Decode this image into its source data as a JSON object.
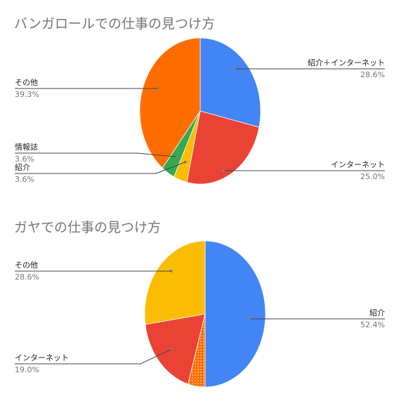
{
  "chart_data": [
    {
      "type": "pie",
      "title": "バンガロールでの仕事の見つけ方",
      "start": "top",
      "direction": "clockwise",
      "slices": [
        {
          "name": "紹介＋インターネット",
          "value": 28.6,
          "label": "28.6%",
          "color": "#4285F4",
          "side": "right"
        },
        {
          "name": "インターネット",
          "value": 25.0,
          "label": "25.0%",
          "color": "#EA4335",
          "side": "right"
        },
        {
          "name": "紹介",
          "value": 3.6,
          "label": "3.6%",
          "color": "#FBBC04",
          "side": "left"
        },
        {
          "name": "情報誌",
          "value": 3.6,
          "label": "3.6%",
          "color": "#34A853",
          "side": "left"
        },
        {
          "name": "その他",
          "value": 39.3,
          "label": "39.3%",
          "color": "#FF6D01",
          "side": "left"
        }
      ]
    },
    {
      "type": "pie",
      "title": "ガヤでの仕事の見つけ方",
      "start": "top",
      "direction": "clockwise",
      "slices": [
        {
          "name": "紹介",
          "value": 52.4,
          "label": "52.4%",
          "color": "#4285F4",
          "side": "right"
        },
        {
          "name": "",
          "value": 4.8,
          "label": "",
          "color": "#FF6D01",
          "side": "none",
          "pattern": "dots"
        },
        {
          "name": "インターネット",
          "value": 19.0,
          "label": "19.0%",
          "color": "#EA4335",
          "side": "left"
        },
        {
          "name": "その他",
          "value": 28.6,
          "label": "28.6%",
          "color": "#FBBC04",
          "side": "left"
        }
      ]
    }
  ]
}
